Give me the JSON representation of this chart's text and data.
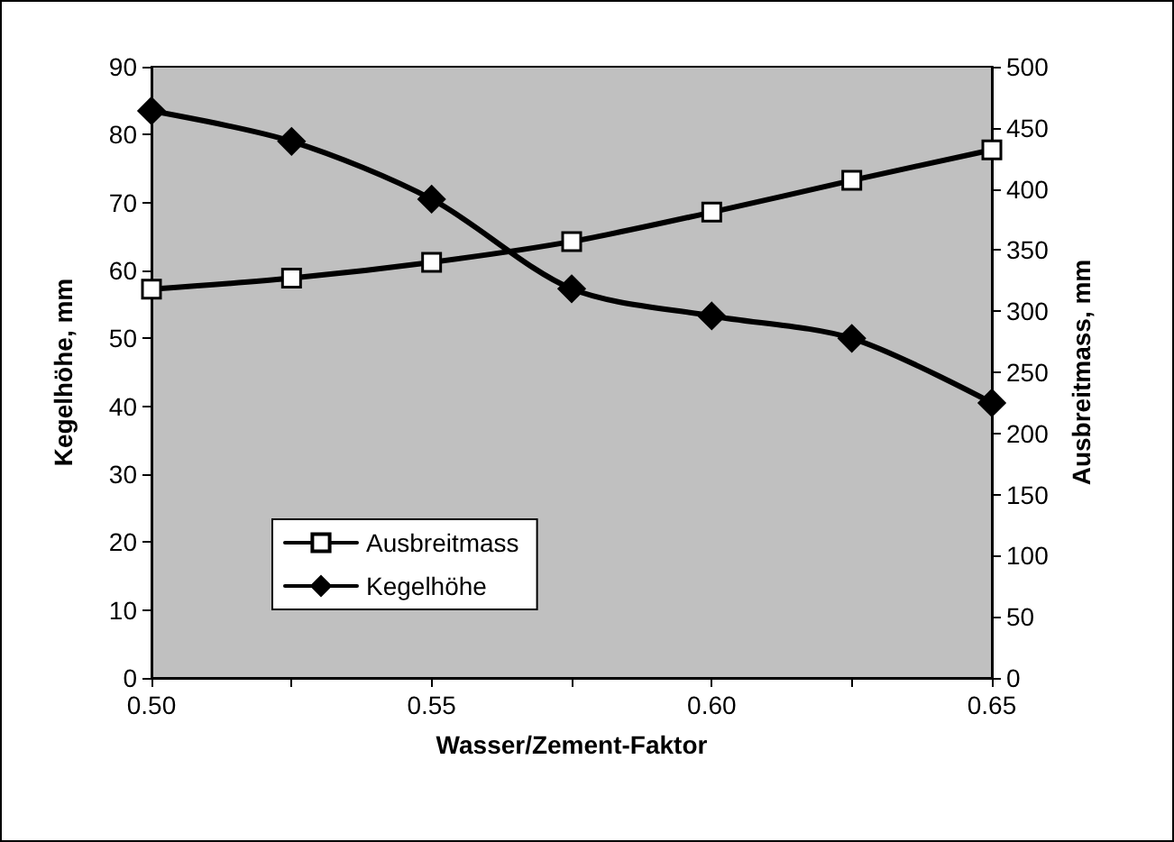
{
  "chart_data": {
    "type": "line",
    "xlabel": "Wasser/Zement-Faktor",
    "ylabel": "Kegelhöhe, mm",
    "y2label": "Ausbreitmass, mm",
    "x": [
      0.5,
      0.525,
      0.55,
      0.575,
      0.6,
      0.625,
      0.65
    ],
    "series": [
      {
        "name": "Ausbreitmass",
        "color": "#000000",
        "marker": "square",
        "axis": "y2",
        "values": [
          318,
          327,
          340,
          357,
          381,
          407,
          432
        ]
      },
      {
        "name": "Kegelhöhe",
        "color": "#000000",
        "marker": "diamond",
        "values": [
          83.5,
          79.0,
          70.5,
          57.3,
          53.3,
          50.0,
          40.5
        ]
      }
    ],
    "xlim": [
      0.5,
      0.65
    ],
    "xticks": [
      {
        "value": 0.5,
        "label": "0.50"
      },
      {
        "value": 0.525,
        "label": null
      },
      {
        "value": 0.55,
        "label": "0.55"
      },
      {
        "value": 0.575,
        "label": null
      },
      {
        "value": 0.6,
        "label": "0.60"
      },
      {
        "value": 0.625,
        "label": null
      },
      {
        "value": 0.65,
        "label": "0.65"
      }
    ],
    "ylim": [
      0,
      90
    ],
    "yticks": [
      0,
      10,
      20,
      30,
      40,
      50,
      60,
      70,
      80,
      90
    ],
    "y2lim": [
      0,
      500
    ],
    "y2ticks": [
      0,
      50,
      100,
      150,
      200,
      250,
      300,
      350,
      400,
      450,
      500
    ],
    "grid": false,
    "legend": "bottom left",
    "line_style": "solid"
  }
}
